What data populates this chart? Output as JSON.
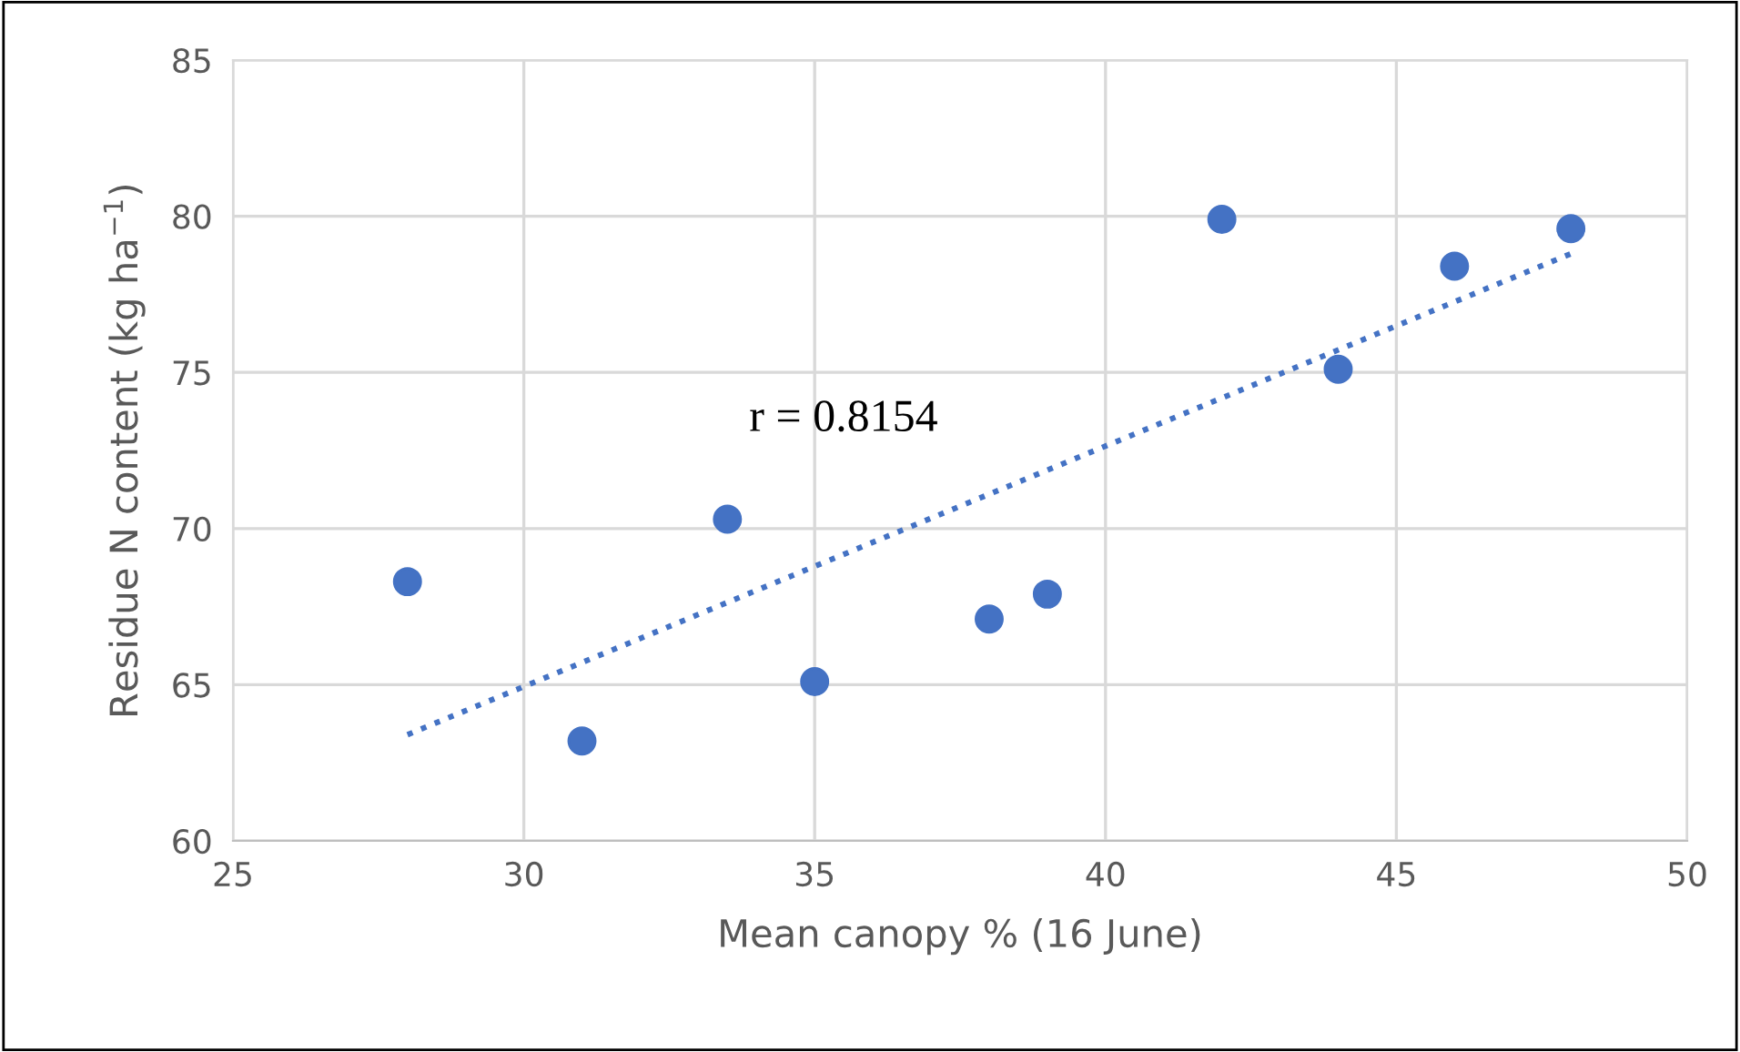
{
  "chart_data": {
    "type": "scatter",
    "xlabel": "Mean canopy % (16 June)",
    "ylabel": "Residue N content (kg ha$^{−1}$)",
    "annotations": [
      "r = 0.8154"
    ],
    "series": [
      {
        "color": "#4472c4",
        "marker": "circle",
        "x": [
          28,
          31,
          33.5,
          35,
          38,
          39,
          42,
          44,
          46,
          48
        ],
        "values": [
          68.3,
          63.2,
          70.3,
          65.1,
          67.1,
          67.9,
          79.9,
          75.1,
          78.4,
          79.6
        ]
      },
      {
        "type": "line",
        "color": "#4472c4",
        "line_style": "dotted",
        "marker": "none",
        "x": [
          28,
          48
        ],
        "values": [
          63.4,
          78.8
        ]
      }
    ],
    "xlim": [
      25,
      50
    ],
    "xticks": [
      25,
      30,
      35,
      40,
      45,
      50
    ],
    "ylim": [
      60,
      85
    ],
    "yticks": [
      60,
      65,
      70,
      75,
      80,
      85
    ],
    "grid": true,
    "legend": false
  }
}
